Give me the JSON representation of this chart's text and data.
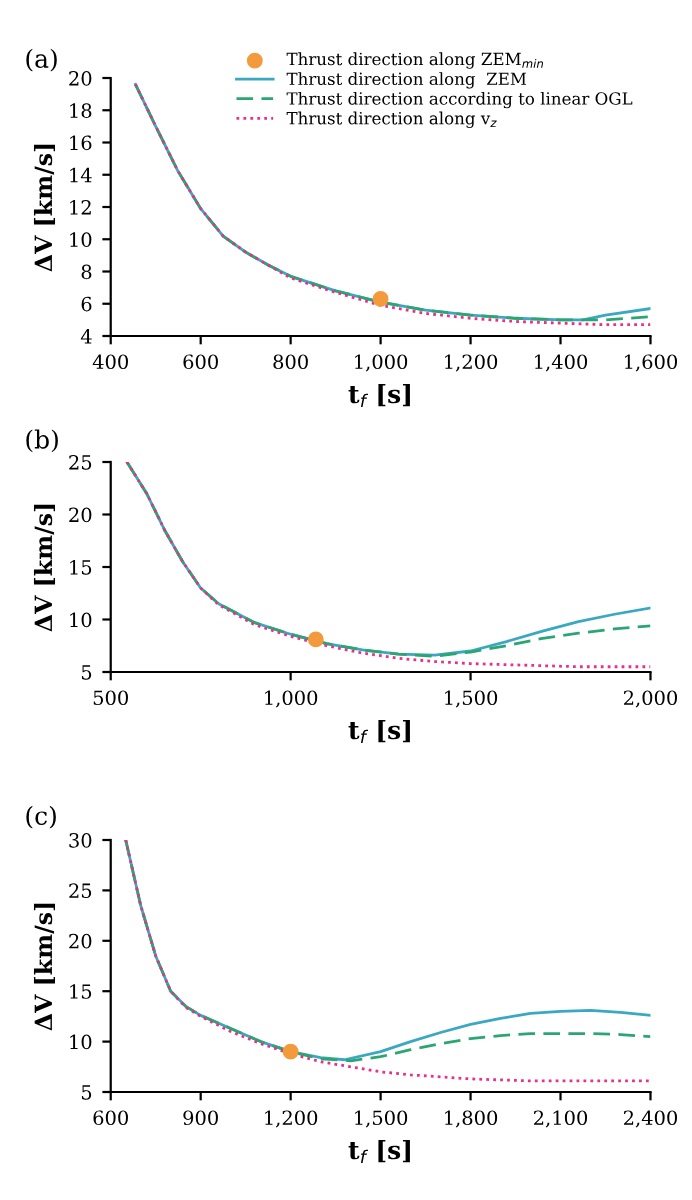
{
  "chart_data": [
    {
      "type": "line",
      "title": "(a)",
      "xlabel": "t$_{f}$ [s]",
      "ylabel": "ΔV [km/s]",
      "xlim": [
        400,
        1600
      ],
      "ylim": [
        4,
        20
      ],
      "xticks": [
        400,
        600,
        800,
        {
          "value": 1000,
          "label": "1,000"
        },
        {
          "value": 1200,
          "label": "1,200"
        },
        {
          "value": 1400,
          "label": "1,400"
        },
        {
          "value": 1600,
          "label": "1,600"
        }
      ],
      "yticks": [
        4,
        6,
        8,
        10,
        12,
        14,
        16,
        18,
        20
      ],
      "grid": false,
      "legend": "top",
      "series": [
        {
          "name": "Thrust direction along ZEM$_{min}$",
          "type": "scatter",
          "marker": "circle",
          "color": "#f39a3c",
          "x": [
            1000
          ],
          "values": [
            6.3
          ]
        },
        {
          "name": "Thrust direction along  ZEM",
          "line_style": "solid",
          "color": "#3aa8c1",
          "x": [
            455,
            500,
            550,
            600,
            650,
            700,
            750,
            800,
            900,
            1000,
            1100,
            1200,
            1300,
            1400,
            1450,
            1500,
            1600
          ],
          "values": [
            19.6,
            17.0,
            14.2,
            11.9,
            10.2,
            9.2,
            8.4,
            7.7,
            6.8,
            6.1,
            5.6,
            5.3,
            5.1,
            5.0,
            5.0,
            5.3,
            5.7
          ]
        },
        {
          "name": "Thrust direction according to linear OGL",
          "line_style": "dashed",
          "color": "#2ba673",
          "x": [
            455,
            500,
            550,
            600,
            650,
            700,
            750,
            800,
            900,
            1000,
            1100,
            1200,
            1300,
            1400,
            1500,
            1600
          ],
          "values": [
            19.6,
            17.0,
            14.2,
            11.9,
            10.2,
            9.2,
            8.4,
            7.7,
            6.8,
            6.1,
            5.6,
            5.3,
            5.1,
            5.0,
            5.0,
            5.2
          ]
        },
        {
          "name": "Thrust direction along v$_{z}$",
          "line_style": "dotted",
          "color": "#e8308a",
          "x": [
            455,
            500,
            550,
            600,
            650,
            700,
            750,
            800,
            900,
            1000,
            1100,
            1200,
            1300,
            1400,
            1500,
            1600
          ],
          "values": [
            19.6,
            17.0,
            14.2,
            11.9,
            10.2,
            9.2,
            8.4,
            7.6,
            6.7,
            5.9,
            5.4,
            5.1,
            4.9,
            4.8,
            4.7,
            4.7
          ]
        }
      ]
    },
    {
      "type": "line",
      "title": "(b)",
      "xlabel": "t$_{f}$ [s]",
      "ylabel": "ΔV [km/s]",
      "xlim": [
        500,
        2000
      ],
      "ylim": [
        5,
        25
      ],
      "xticks": [
        500,
        {
          "value": 1000,
          "label": "1,000"
        },
        {
          "value": 1500,
          "label": "1,500"
        },
        {
          "value": 2000,
          "label": "2,000"
        }
      ],
      "yticks": [
        5,
        10,
        15,
        20,
        25
      ],
      "grid": false,
      "series": [
        {
          "type": "scatter",
          "marker": "circle",
          "color": "#f39a3c",
          "x": [
            1070
          ],
          "values": [
            8.1
          ]
        },
        {
          "line_style": "solid",
          "color": "#3aa8c1",
          "x": [
            545,
            600,
            650,
            700,
            750,
            800,
            900,
            1000,
            1100,
            1200,
            1300,
            1400,
            1500,
            1600,
            1700,
            1800,
            1900,
            2000
          ],
          "values": [
            25,
            22.0,
            18.5,
            15.5,
            13.0,
            11.5,
            9.7,
            8.6,
            7.7,
            7.1,
            6.7,
            6.6,
            7.0,
            7.9,
            8.9,
            9.8,
            10.5,
            11.1
          ]
        },
        {
          "line_style": "dashed",
          "color": "#2ba673",
          "x": [
            545,
            600,
            650,
            700,
            750,
            800,
            900,
            1000,
            1100,
            1200,
            1300,
            1400,
            1500,
            1600,
            1700,
            1800,
            1900,
            2000
          ],
          "values": [
            25,
            22.0,
            18.5,
            15.5,
            13.0,
            11.5,
            9.7,
            8.6,
            7.7,
            7.1,
            6.7,
            6.5,
            6.9,
            7.5,
            8.2,
            8.7,
            9.1,
            9.4
          ]
        },
        {
          "line_style": "dotted",
          "color": "#e8308a",
          "x": [
            545,
            600,
            650,
            700,
            750,
            800,
            900,
            1000,
            1100,
            1200,
            1300,
            1400,
            1500,
            1600,
            1700,
            1800,
            1900,
            2000
          ],
          "values": [
            25,
            22.0,
            18.5,
            15.5,
            13.0,
            11.4,
            9.5,
            8.4,
            7.5,
            6.8,
            6.3,
            6.0,
            5.8,
            5.7,
            5.6,
            5.5,
            5.5,
            5.5
          ]
        }
      ]
    },
    {
      "type": "line",
      "title": "(c)",
      "xlabel": "t$_{f}$ [s]",
      "ylabel": "ΔV [km/s]",
      "xlim": [
        600,
        2400
      ],
      "ylim": [
        5,
        30
      ],
      "xticks": [
        600,
        900,
        {
          "value": 1200,
          "label": "1,200"
        },
        {
          "value": 1500,
          "label": "1,500"
        },
        {
          "value": 1800,
          "label": "1,800"
        },
        {
          "value": 2100,
          "label": "2,100"
        },
        {
          "value": 2400,
          "label": "2,400"
        }
      ],
      "yticks": [
        5,
        10,
        15,
        20,
        25,
        30
      ],
      "grid": false,
      "series": [
        {
          "type": "scatter",
          "marker": "circle",
          "color": "#f39a3c",
          "x": [
            1200
          ],
          "values": [
            9.0
          ]
        },
        {
          "line_style": "solid",
          "color": "#3aa8c1",
          "x": [
            650,
            700,
            750,
            800,
            850,
            900,
            1000,
            1100,
            1200,
            1300,
            1380,
            1500,
            1600,
            1700,
            1800,
            1900,
            2000,
            2100,
            2200,
            2300,
            2400
          ],
          "values": [
            30,
            23.5,
            18.5,
            15.0,
            13.5,
            12.6,
            11.3,
            10.0,
            9.0,
            8.4,
            8.2,
            9.0,
            10.0,
            10.9,
            11.7,
            12.3,
            12.8,
            13.0,
            13.1,
            12.9,
            12.6
          ]
        },
        {
          "line_style": "dashed",
          "color": "#2ba673",
          "x": [
            650,
            700,
            750,
            800,
            850,
            900,
            1000,
            1100,
            1200,
            1300,
            1400,
            1500,
            1600,
            1700,
            1800,
            1900,
            2000,
            2100,
            2200,
            2300,
            2400
          ],
          "values": [
            30,
            23.5,
            18.5,
            15.0,
            13.5,
            12.6,
            11.3,
            10.0,
            9.0,
            8.3,
            8.1,
            8.5,
            9.2,
            9.8,
            10.3,
            10.6,
            10.8,
            10.8,
            10.8,
            10.7,
            10.5
          ]
        },
        {
          "line_style": "dotted",
          "color": "#e8308a",
          "x": [
            650,
            700,
            750,
            800,
            850,
            900,
            1000,
            1100,
            1200,
            1300,
            1400,
            1500,
            1600,
            1700,
            1800,
            1900,
            2000,
            2200,
            2400
          ],
          "values": [
            30,
            23.5,
            18.5,
            15.0,
            13.4,
            12.5,
            11.0,
            9.8,
            8.8,
            8.0,
            7.5,
            7.0,
            6.7,
            6.5,
            6.3,
            6.2,
            6.1,
            6.1,
            6.1
          ]
        }
      ]
    }
  ]
}
